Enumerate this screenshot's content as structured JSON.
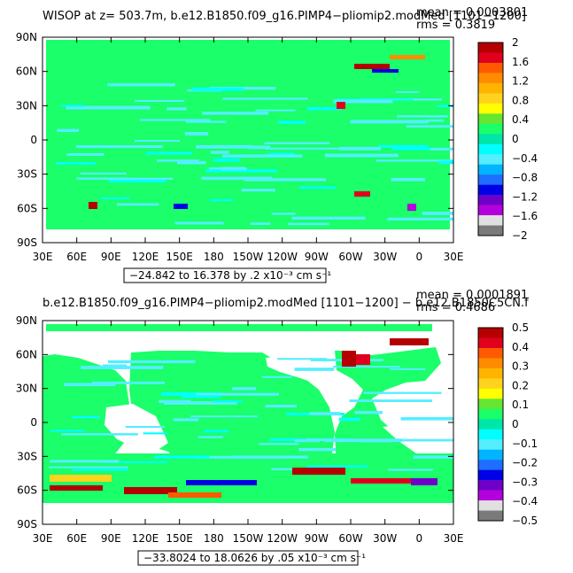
{
  "colors": {
    "ocean": "#1aff6a",
    "mixed": "#55eeff",
    "land": "#ffffff"
  },
  "chart_data": [
    {
      "type": "heatmap",
      "title": "WISOP at z= 503.7m, b.e12.B1850.f09_g16.PIMP4−pliomip2.modMed [1101−1200]",
      "stats": {
        "mean": "mean = 0.0003801",
        "rms": "rms = 0.3819"
      },
      "xticks": [
        "30E",
        "60E",
        "90E",
        "120E",
        "150E",
        "180",
        "150W",
        "120W",
        "90W",
        "60W",
        "30W",
        "0",
        "30E"
      ],
      "yticks": [
        "90N",
        "60N",
        "30N",
        "0",
        "30S",
        "60S",
        "90S"
      ],
      "range_label": "−24.842 to 16.378 by .2 x10⁻³ cm s⁻¹",
      "colorbar": {
        "labels": [
          "2",
          "1.6",
          "1.2",
          "0.8",
          "0.4",
          "0",
          "−0.4",
          "−0.8",
          "−1.2",
          "−1.6",
          "−2"
        ],
        "colors": [
          "#b40000",
          "#e0001e",
          "#ff5a00",
          "#ff8c00",
          "#ffb400",
          "#ffd21e",
          "#ffff00",
          "#64e632",
          "#1aff6a",
          "#00e6a8",
          "#00ffff",
          "#55eeff",
          "#00b4ff",
          "#1e6eff",
          "#0000e6",
          "#6e00c8",
          "#b400dc",
          "#e0e0e0",
          "#7a7a7a"
        ]
      }
    },
    {
      "type": "heatmap",
      "title": "b.e12.B1850.f09_g16.PIMP4−pliomip2.modMed [1101−1200] − b.e12.B1850C5CN.f",
      "stats": {
        "mean": "mean = 0.0001891",
        "rms": "rms = 0.4686"
      },
      "xticks": [
        "30E",
        "60E",
        "90E",
        "120E",
        "150E",
        "180",
        "150W",
        "120W",
        "90W",
        "60W",
        "30W",
        "0",
        "30E"
      ],
      "yticks": [
        "90N",
        "60N",
        "30N",
        "0",
        "30S",
        "60S",
        "90S"
      ],
      "range_label": "−33.8024 to 18.0626 by .05 x10⁻³ cm s⁻¹",
      "colorbar": {
        "labels": [
          "0.5",
          "0.4",
          "0.3",
          "0.2",
          "0.1",
          "0",
          "−0.1",
          "−0.2",
          "−0.3",
          "−0.4",
          "−0.5"
        ],
        "colors": [
          "#b40000",
          "#e0001e",
          "#ff5a00",
          "#ff8c00",
          "#ffb400",
          "#ffd21e",
          "#ffff00",
          "#64e632",
          "#1aff6a",
          "#00e6a8",
          "#00ffff",
          "#55eeff",
          "#00b4ff",
          "#1e6eff",
          "#0000e6",
          "#6e00c8",
          "#b400dc",
          "#e0e0e0",
          "#7a7a7a"
        ]
      }
    }
  ]
}
